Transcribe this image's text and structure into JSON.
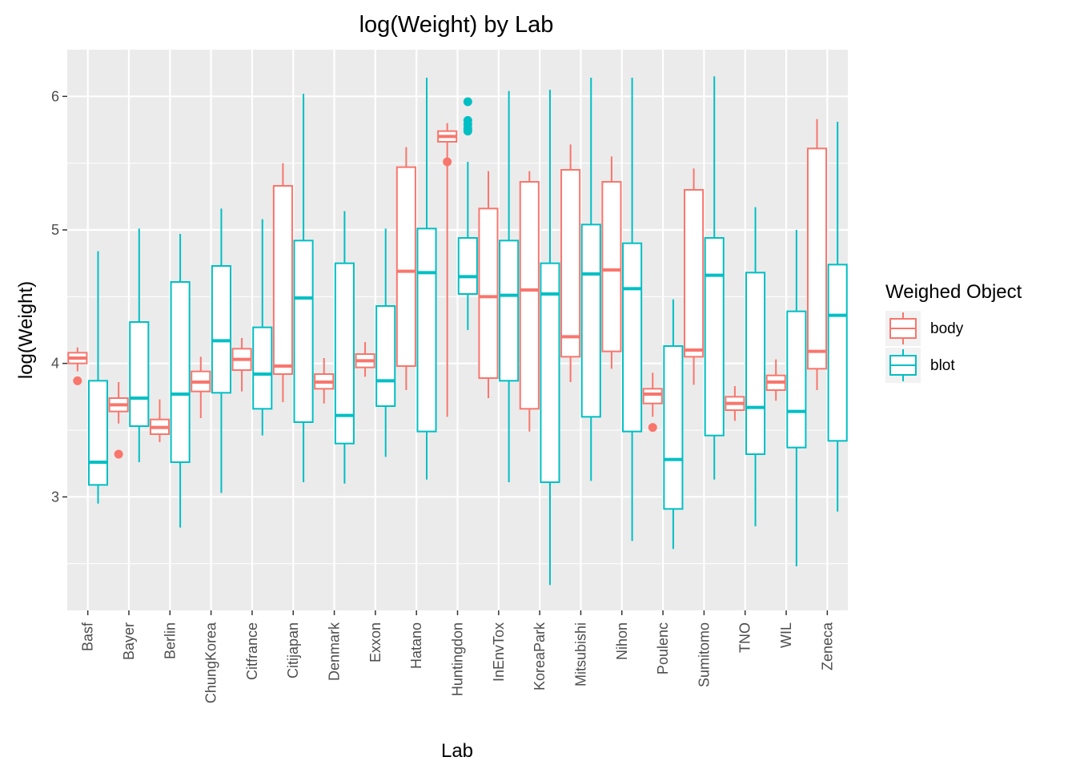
{
  "chart_data": {
    "type": "boxplot",
    "title": "log(Weight) by Lab",
    "xlabel": "Lab",
    "ylabel": "log(Weight)",
    "ylim": [
      2.15,
      6.35
    ],
    "yticks": [
      3,
      4,
      5,
      6
    ],
    "grid": true,
    "legend": {
      "title": "Weighed Object",
      "position": "right"
    },
    "categories": [
      "Basf",
      "Bayer",
      "Berlin",
      "ChungKorea",
      "Citfrance",
      "Citijapan",
      "Denmark",
      "Exxon",
      "Hatano",
      "Huntingdon",
      "InEnvTox",
      "KoreaPark",
      "Mitsubishi",
      "Nihon",
      "Poulenc",
      "Sumitomo",
      "TNO",
      "WIL",
      "Zeneca"
    ],
    "series": [
      {
        "name": "body",
        "color": "#F8766D",
        "boxes": [
          {
            "low": 3.94,
            "q1": 4.0,
            "median": 4.04,
            "q3": 4.08,
            "high": 4.12,
            "outliers": [
              3.87
            ]
          },
          {
            "low": 3.55,
            "q1": 3.64,
            "median": 3.69,
            "q3": 3.74,
            "high": 3.86,
            "outliers": [
              3.32
            ]
          },
          {
            "low": 3.41,
            "q1": 3.47,
            "median": 3.52,
            "q3": 3.58,
            "high": 3.73,
            "outliers": []
          },
          {
            "low": 3.59,
            "q1": 3.79,
            "median": 3.86,
            "q3": 3.94,
            "high": 4.05,
            "outliers": []
          },
          {
            "low": 3.79,
            "q1": 3.95,
            "median": 4.03,
            "q3": 4.11,
            "high": 4.19,
            "outliers": []
          },
          {
            "low": 3.71,
            "q1": 3.92,
            "median": 3.98,
            "q3": 5.33,
            "high": 5.5,
            "outliers": []
          },
          {
            "low": 3.7,
            "q1": 3.81,
            "median": 3.86,
            "q3": 3.92,
            "high": 4.04,
            "outliers": []
          },
          {
            "low": 3.9,
            "q1": 3.97,
            "median": 4.02,
            "q3": 4.07,
            "high": 4.16,
            "outliers": []
          },
          {
            "low": 3.8,
            "q1": 3.98,
            "median": 4.69,
            "q3": 5.47,
            "high": 5.62,
            "outliers": []
          },
          {
            "low": 3.6,
            "q1": 5.66,
            "median": 5.7,
            "q3": 5.74,
            "high": 5.8,
            "outliers": [
              5.51
            ]
          },
          {
            "low": 3.74,
            "q1": 3.89,
            "median": 4.5,
            "q3": 5.16,
            "high": 5.44,
            "outliers": []
          },
          {
            "low": 3.49,
            "q1": 3.66,
            "median": 4.55,
            "q3": 5.36,
            "high": 5.44,
            "outliers": []
          },
          {
            "low": 3.86,
            "q1": 4.05,
            "median": 4.2,
            "q3": 5.45,
            "high": 5.64,
            "outliers": []
          },
          {
            "low": 3.96,
            "q1": 4.09,
            "median": 4.7,
            "q3": 5.36,
            "high": 5.55,
            "outliers": []
          },
          {
            "low": 3.6,
            "q1": 3.7,
            "median": 3.77,
            "q3": 3.81,
            "high": 3.93,
            "outliers": [
              3.52
            ]
          },
          {
            "low": 3.84,
            "q1": 4.05,
            "median": 4.1,
            "q3": 5.3,
            "high": 5.46,
            "outliers": []
          },
          {
            "low": 3.57,
            "q1": 3.65,
            "median": 3.7,
            "q3": 3.75,
            "high": 3.83,
            "outliers": []
          },
          {
            "low": 3.72,
            "q1": 3.8,
            "median": 3.86,
            "q3": 3.91,
            "high": 4.03,
            "outliers": []
          },
          {
            "low": 3.8,
            "q1": 3.96,
            "median": 4.09,
            "q3": 5.61,
            "high": 5.83,
            "outliers": []
          }
        ]
      },
      {
        "name": "blot",
        "color": "#00BFC4",
        "boxes": [
          {
            "low": 2.95,
            "q1": 3.09,
            "median": 3.26,
            "q3": 3.87,
            "high": 4.84,
            "outliers": []
          },
          {
            "low": 3.26,
            "q1": 3.53,
            "median": 3.74,
            "q3": 4.31,
            "high": 5.01,
            "outliers": []
          },
          {
            "low": 2.77,
            "q1": 3.26,
            "median": 3.77,
            "q3": 4.61,
            "high": 4.97,
            "outliers": []
          },
          {
            "low": 3.03,
            "q1": 3.78,
            "median": 4.17,
            "q3": 4.73,
            "high": 5.16,
            "outliers": []
          },
          {
            "low": 3.46,
            "q1": 3.66,
            "median": 3.92,
            "q3": 4.27,
            "high": 5.08,
            "outliers": []
          },
          {
            "low": 3.11,
            "q1": 3.56,
            "median": 4.49,
            "q3": 4.92,
            "high": 6.02,
            "outliers": []
          },
          {
            "low": 3.1,
            "q1": 3.4,
            "median": 3.61,
            "q3": 4.75,
            "high": 5.14,
            "outliers": []
          },
          {
            "low": 3.3,
            "q1": 3.68,
            "median": 3.87,
            "q3": 4.43,
            "high": 5.01,
            "outliers": []
          },
          {
            "low": 3.13,
            "q1": 3.49,
            "median": 4.68,
            "q3": 5.01,
            "high": 6.14,
            "outliers": []
          },
          {
            "low": 4.25,
            "q1": 4.52,
            "median": 4.65,
            "q3": 4.94,
            "high": 5.51,
            "outliers": [
              5.96,
              5.82,
              5.79,
              5.76,
              5.74
            ]
          },
          {
            "low": 3.11,
            "q1": 3.87,
            "median": 4.51,
            "q3": 4.92,
            "high": 6.04,
            "outliers": []
          },
          {
            "low": 2.34,
            "q1": 3.11,
            "median": 4.52,
            "q3": 4.75,
            "high": 6.05,
            "outliers": []
          },
          {
            "low": 3.12,
            "q1": 3.6,
            "median": 4.67,
            "q3": 5.04,
            "high": 6.14,
            "outliers": []
          },
          {
            "low": 2.67,
            "q1": 3.49,
            "median": 4.56,
            "q3": 4.9,
            "high": 6.14,
            "outliers": []
          },
          {
            "low": 2.61,
            "q1": 2.91,
            "median": 3.28,
            "q3": 4.13,
            "high": 4.48,
            "outliers": []
          },
          {
            "low": 3.13,
            "q1": 3.46,
            "median": 4.66,
            "q3": 4.94,
            "high": 6.15,
            "outliers": []
          },
          {
            "low": 2.78,
            "q1": 3.32,
            "median": 3.67,
            "q3": 4.68,
            "high": 5.17,
            "outliers": []
          },
          {
            "low": 2.48,
            "q1": 3.37,
            "median": 3.64,
            "q3": 4.39,
            "high": 5.0,
            "outliers": []
          },
          {
            "low": 2.89,
            "q1": 3.42,
            "median": 4.36,
            "q3": 4.74,
            "high": 5.81,
            "outliers": []
          }
        ]
      }
    ]
  }
}
